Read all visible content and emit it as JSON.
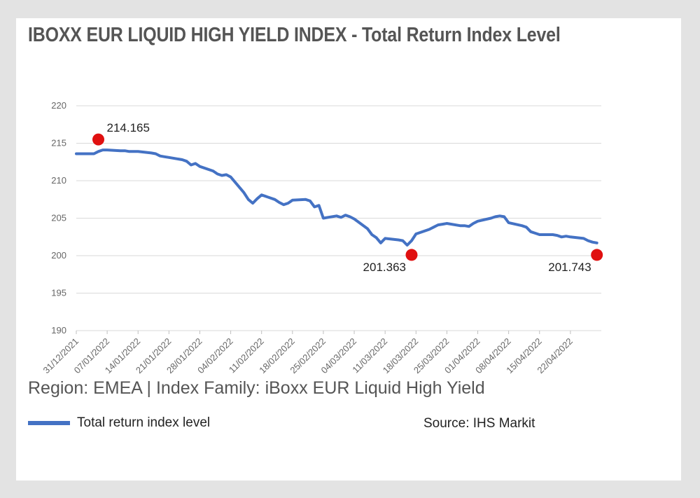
{
  "title": "IBOXX EUR LIQUID HIGH YIELD INDEX - Total Return Index Level",
  "region_line": "Region: EMEA | Index Family: iBoxx EUR Liquid High Yield",
  "source": "Source: IHS Markit",
  "colors": {
    "line": "#4472c4",
    "marker": "#e01010",
    "grid": "#d9d9d9"
  },
  "chart_data": {
    "type": "line",
    "title": "IBOXX EUR LIQUID HIGH YIELD INDEX - Total Return Index Level",
    "xlabel": "",
    "ylabel": "",
    "ylim": [
      190,
      220
    ],
    "yticks": [
      190,
      195,
      200,
      205,
      210,
      215,
      220
    ],
    "xlim": [
      "2021-12-31",
      "2022-04-29"
    ],
    "xtick_labels": [
      "31/12/2021",
      "07/01/2022",
      "14/01/2022",
      "21/01/2022",
      "28/01/2022",
      "04/02/2022",
      "11/02/2022",
      "18/02/2022",
      "25/02/2022",
      "04/03/2022",
      "11/03/2022",
      "18/03/2022",
      "25/03/2022",
      "01/04/2022",
      "08/04/2022",
      "15/04/2022",
      "22/04/2022"
    ],
    "grid": true,
    "legend": "bottom-left",
    "series": [
      {
        "name": "Total return index level",
        "x": [
          "2021-12-31",
          "2022-01-03",
          "2022-01-04",
          "2022-01-05",
          "2022-01-06",
          "2022-01-07",
          "2022-01-10",
          "2022-01-11",
          "2022-01-12",
          "2022-01-13",
          "2022-01-14",
          "2022-01-17",
          "2022-01-18",
          "2022-01-19",
          "2022-01-20",
          "2022-01-21",
          "2022-01-24",
          "2022-01-25",
          "2022-01-26",
          "2022-01-27",
          "2022-01-28",
          "2022-01-31",
          "2022-02-01",
          "2022-02-02",
          "2022-02-03",
          "2022-02-04",
          "2022-02-07",
          "2022-02-08",
          "2022-02-09",
          "2022-02-10",
          "2022-02-11",
          "2022-02-14",
          "2022-02-15",
          "2022-02-16",
          "2022-02-17",
          "2022-02-18",
          "2022-02-21",
          "2022-02-22",
          "2022-02-23",
          "2022-02-24",
          "2022-02-25",
          "2022-02-28",
          "2022-03-01",
          "2022-03-02",
          "2022-03-03",
          "2022-03-04",
          "2022-03-07",
          "2022-03-08",
          "2022-03-09",
          "2022-03-10",
          "2022-03-11",
          "2022-03-14",
          "2022-03-15",
          "2022-03-16",
          "2022-03-17",
          "2022-03-18",
          "2022-03-21",
          "2022-03-22",
          "2022-03-23",
          "2022-03-24",
          "2022-03-25",
          "2022-03-28",
          "2022-03-29",
          "2022-03-30",
          "2022-03-31",
          "2022-04-01",
          "2022-04-04",
          "2022-04-05",
          "2022-04-06",
          "2022-04-07",
          "2022-04-08",
          "2022-04-11",
          "2022-04-12",
          "2022-04-13",
          "2022-04-14",
          "2022-04-15",
          "2022-04-18",
          "2022-04-19",
          "2022-04-20",
          "2022-04-21",
          "2022-04-22",
          "2022-04-25",
          "2022-04-26",
          "2022-04-27",
          "2022-04-28"
        ],
        "values": [
          213.6,
          213.6,
          213.6,
          213.9,
          214.1,
          214.1,
          214.0,
          214.0,
          213.9,
          213.9,
          213.9,
          213.7,
          213.6,
          213.3,
          213.2,
          213.1,
          212.8,
          212.6,
          212.1,
          212.3,
          211.9,
          211.3,
          210.9,
          210.7,
          210.8,
          210.5,
          208.4,
          207.5,
          207.0,
          207.6,
          208.1,
          207.5,
          207.1,
          206.8,
          207.0,
          207.4,
          207.5,
          207.3,
          206.5,
          206.7,
          205.0,
          205.3,
          205.1,
          205.4,
          205.2,
          204.9,
          203.6,
          202.8,
          202.4,
          201.7,
          202.3,
          202.1,
          202.0,
          201.4,
          202.0,
          202.9,
          203.5,
          203.8,
          204.1,
          204.2,
          204.3,
          204.0,
          204.0,
          203.9,
          204.3,
          204.6,
          205.0,
          205.2,
          205.3,
          205.2,
          204.4,
          204.0,
          203.8,
          203.2,
          203.0,
          202.8,
          202.8,
          202.7,
          202.5,
          202.6,
          202.5,
          202.3,
          202.0,
          201.8,
          201.7
        ]
      }
    ],
    "annotations": [
      {
        "label": "214.165",
        "x": "2022-01-05",
        "y": 215.5
      },
      {
        "label": "201.363",
        "x": "2022-03-17",
        "y": 200.1
      },
      {
        "label": "201.743",
        "x": "2022-04-28",
        "y": 200.1
      }
    ]
  }
}
